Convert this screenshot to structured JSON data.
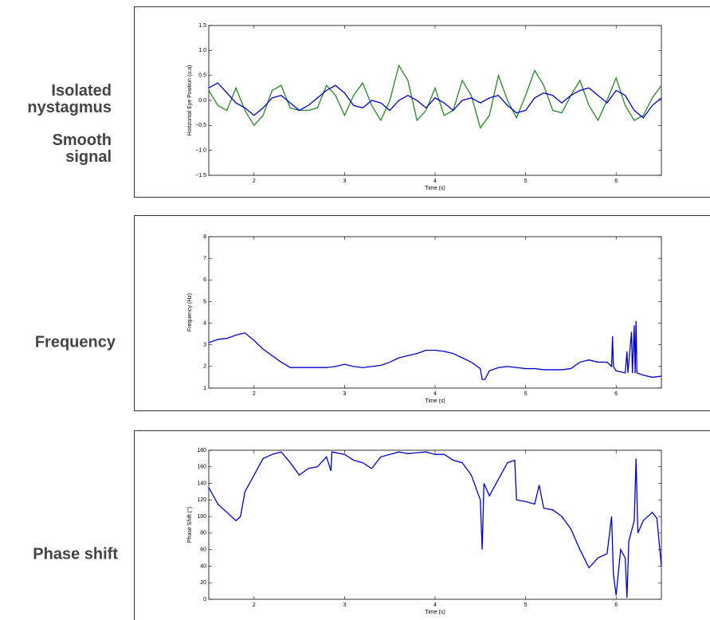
{
  "chart_data": [
    {
      "type": "line",
      "xlabel": "Time (s)",
      "ylabel": "Horizontal Eye Position (u.a)",
      "x": [
        1.5,
        1.6,
        1.7,
        1.8,
        1.9,
        2.0,
        2.1,
        2.2,
        2.3,
        2.4,
        2.5,
        2.6,
        2.7,
        2.8,
        2.9,
        3.0,
        3.1,
        3.2,
        3.3,
        3.4,
        3.5,
        3.6,
        3.7,
        3.8,
        3.9,
        4.0,
        4.1,
        4.2,
        4.3,
        4.4,
        4.5,
        4.6,
        4.7,
        4.8,
        4.9,
        5.0,
        5.1,
        5.2,
        5.3,
        5.4,
        5.5,
        5.6,
        5.7,
        5.8,
        5.9,
        6.0,
        6.1,
        6.2,
        6.3,
        6.4,
        6.5
      ],
      "series": [
        {
          "name": "Isolated nystagmus",
          "color": "#228b22",
          "values": [
            0.2,
            -0.1,
            -0.2,
            0.25,
            -0.2,
            -0.5,
            -0.3,
            0.2,
            0.3,
            -0.15,
            -0.2,
            -0.2,
            -0.15,
            0.3,
            0.1,
            -0.3,
            0.1,
            0.35,
            -0.1,
            -0.4,
            0.0,
            0.7,
            0.4,
            -0.4,
            -0.2,
            0.25,
            -0.3,
            -0.2,
            0.4,
            0.1,
            -0.55,
            -0.3,
            0.5,
            0.0,
            -0.35,
            0.1,
            0.6,
            0.3,
            -0.2,
            -0.25,
            0.1,
            0.4,
            -0.1,
            -0.4,
            0.0,
            0.45,
            -0.1,
            -0.4,
            -0.3,
            0.05,
            0.3
          ]
        },
        {
          "name": "Smooth signal",
          "color": "#0000cc",
          "values": [
            0.25,
            0.35,
            0.15,
            -0.05,
            -0.15,
            -0.3,
            -0.15,
            0.05,
            0.1,
            -0.05,
            -0.2,
            -0.1,
            0.05,
            0.2,
            0.3,
            0.15,
            -0.1,
            -0.15,
            0.0,
            -0.05,
            -0.2,
            0.0,
            0.1,
            0.0,
            -0.15,
            0.05,
            -0.05,
            -0.2,
            0.0,
            0.05,
            -0.05,
            0.05,
            0.1,
            -0.1,
            -0.25,
            -0.2,
            0.05,
            0.15,
            0.1,
            -0.05,
            0.1,
            0.2,
            0.25,
            0.1,
            -0.05,
            0.2,
            0.1,
            -0.2,
            -0.35,
            -0.1,
            0.05
          ]
        }
      ],
      "xlim": [
        1.5,
        6.5
      ],
      "xticks": [
        2,
        3,
        4,
        5,
        6
      ],
      "ylim": [
        -1.5,
        1.5
      ],
      "yticks": [
        {
          "value": -1.5,
          "label": "−1.5"
        },
        {
          "value": -1,
          "label": "−1.0"
        },
        {
          "value": -0.5,
          "label": "−0.5"
        },
        {
          "value": 0,
          "label": "0.0"
        },
        0.5,
        {
          "value": 1,
          "label": "1.0"
        },
        1.5
      ]
    },
    {
      "type": "line",
      "title": "Frequency",
      "xlabel": "Time (s)",
      "ylabel": "Frequency (Hz)",
      "x": [
        1.5,
        1.6,
        1.7,
        1.8,
        1.9,
        2.0,
        2.1,
        2.2,
        2.3,
        2.4,
        2.5,
        2.6,
        2.7,
        2.8,
        2.9,
        3.0,
        3.1,
        3.2,
        3.3,
        3.4,
        3.5,
        3.6,
        3.7,
        3.8,
        3.9,
        4.0,
        4.1,
        4.2,
        4.3,
        4.4,
        4.5,
        4.52,
        4.55,
        4.6,
        4.7,
        4.8,
        4.9,
        5.0,
        5.1,
        5.2,
        5.3,
        5.4,
        5.5,
        5.6,
        5.7,
        5.8,
        5.9,
        5.95,
        5.96,
        5.97,
        6.0,
        6.1,
        6.12,
        6.13,
        6.17,
        6.18,
        6.2,
        6.21,
        6.22,
        6.23,
        6.3,
        6.4,
        6.5
      ],
      "series": [
        {
          "name": "Frequency",
          "color": "#0000cc",
          "values": [
            3.1,
            3.25,
            3.3,
            3.45,
            3.55,
            3.2,
            2.8,
            2.5,
            2.2,
            1.95,
            1.95,
            1.95,
            1.95,
            1.95,
            2.0,
            2.1,
            2.0,
            1.95,
            2.0,
            2.05,
            2.2,
            2.4,
            2.5,
            2.6,
            2.75,
            2.75,
            2.7,
            2.6,
            2.4,
            2.2,
            1.9,
            1.4,
            1.4,
            1.8,
            1.95,
            2.0,
            1.95,
            1.9,
            1.9,
            1.85,
            1.85,
            1.85,
            1.9,
            2.2,
            2.3,
            2.2,
            2.2,
            2.0,
            3.4,
            2.0,
            1.8,
            1.7,
            2.7,
            1.7,
            3.6,
            1.7,
            3.9,
            1.7,
            4.1,
            1.7,
            1.6,
            1.5,
            1.55
          ]
        }
      ],
      "xlim": [
        1.5,
        6.5
      ],
      "xticks": [
        2,
        3,
        4,
        5,
        6
      ],
      "ylim": [
        1,
        8
      ],
      "yticks": [
        1,
        2,
        3,
        4,
        5,
        6,
        7,
        8
      ]
    },
    {
      "type": "line",
      "title": "Phase shift",
      "xlabel": "Time (s)",
      "ylabel": "Phase Shift (°)",
      "x": [
        1.5,
        1.6,
        1.7,
        1.8,
        1.85,
        1.9,
        2.0,
        2.1,
        2.2,
        2.3,
        2.4,
        2.5,
        2.6,
        2.7,
        2.8,
        2.85,
        2.86,
        3.0,
        3.1,
        3.2,
        3.3,
        3.4,
        3.5,
        3.6,
        3.7,
        3.8,
        3.9,
        4.0,
        4.1,
        4.2,
        4.3,
        4.4,
        4.5,
        4.52,
        4.54,
        4.6,
        4.7,
        4.8,
        4.88,
        4.9,
        5.0,
        5.1,
        5.15,
        5.2,
        5.3,
        5.4,
        5.5,
        5.6,
        5.7,
        5.8,
        5.9,
        5.95,
        5.97,
        6.0,
        6.05,
        6.1,
        6.12,
        6.14,
        6.2,
        6.22,
        6.24,
        6.3,
        6.4,
        6.45,
        6.5
      ],
      "series": [
        {
          "name": "Phase shift",
          "color": "#0000cc",
          "values": [
            135,
            115,
            105,
            95,
            100,
            130,
            150,
            170,
            175,
            178,
            165,
            150,
            158,
            160,
            172,
            155,
            178,
            175,
            168,
            165,
            158,
            172,
            175,
            178,
            176,
            177,
            178,
            175,
            175,
            168,
            165,
            150,
            120,
            60,
            140,
            125,
            145,
            165,
            168,
            120,
            118,
            115,
            138,
            110,
            108,
            100,
            85,
            60,
            38,
            50,
            55,
            100,
            30,
            5,
            60,
            50,
            2,
            70,
            95,
            170,
            80,
            95,
            105,
            98,
            40
          ]
        }
      ],
      "xlim": [
        1.5,
        6.5
      ],
      "xticks": [
        2,
        3,
        4,
        5,
        6
      ],
      "ylim": [
        0,
        180
      ],
      "yticks": [
        0,
        20,
        40,
        60,
        80,
        100,
        120,
        140,
        160,
        180
      ]
    }
  ]
}
